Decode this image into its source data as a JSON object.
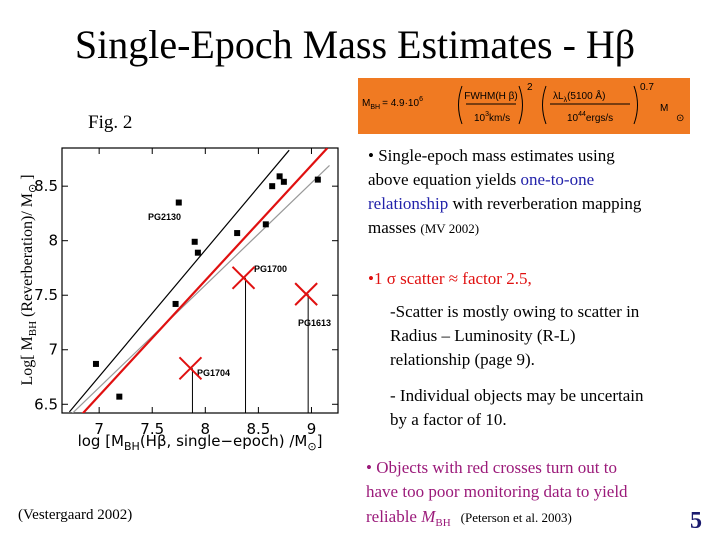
{
  "title": "Single-Epoch Mass Estimates - Hβ",
  "equation": {
    "m": "M",
    "bh": "BH",
    "coef": "= 4.9·10",
    "coef_exp": "6",
    "num1": "FWHM(H β)",
    "exp1": "2",
    "den1_base": "10",
    "den1_exp": "3",
    "den1_unit": "km/s",
    "num2_base": "λL",
    "num2_sub": "λ",
    "num2_rest": "(5100 Å)",
    "exp2": "0.7",
    "den2_base": "10",
    "den2_exp": "44",
    "den2_unit": "ergs/s",
    "m_sun": "M",
    "sun": "⊙"
  },
  "figure_label": "Fig. 2",
  "chart_data": {
    "type": "scatter",
    "x_label": [
      "log [M",
      "BH",
      "(Hβ,  single−epoch)  /M",
      "⊙",
      "]"
    ],
    "y_label": [
      "Log[ M",
      "BH",
      " (Reverberation)/ M",
      "⊙",
      " ]"
    ],
    "xlim": [
      6.65,
      9.25
    ],
    "ylim": [
      6.42,
      8.85
    ],
    "xticks": [
      7,
      7.5,
      8,
      8.5,
      9
    ],
    "yticks": [
      6.5,
      7,
      7.5,
      8,
      8.5
    ],
    "series": [
      {
        "marker": "square",
        "color": "#000000",
        "x": [
          6.97,
          7.19,
          7.72,
          7.75,
          7.9,
          7.93,
          8.3,
          8.57,
          8.63,
          8.7,
          8.74,
          9.06
        ],
        "values": [
          6.87,
          6.57,
          7.42,
          8.35,
          7.99,
          7.89,
          8.07,
          8.15,
          8.5,
          8.59,
          8.54,
          8.56
        ]
      },
      {
        "marker": "cross",
        "color": "#e01010",
        "x": [
          8.36,
          8.95,
          7.86
        ],
        "values": [
          7.66,
          7.51,
          6.83
        ]
      }
    ],
    "lines": [
      {
        "color": "#000000",
        "x": [
          6.72,
          8.79
        ],
        "values": [
          6.43,
          8.83
        ]
      },
      {
        "color": "#999999",
        "x": [
          6.74,
          9.17
        ],
        "values": [
          6.41,
          8.69
        ]
      },
      {
        "color": "#e01010",
        "x": [
          6.83,
          9.15
        ],
        "values": [
          6.4,
          8.85
        ]
      }
    ],
    "annotations": [
      "PG2130",
      "PG1700",
      "PG1613",
      "PG1704"
    ]
  },
  "notes": {
    "b1": [
      "• Single-epoch mass estimates using",
      "above equation yields ",
      "one-to-one",
      "relationship",
      " with reverberation mapping",
      "masses ",
      "(MV 2002)"
    ],
    "b2": "•1 σ scatter ≈ factor 2.5,",
    "b2a": [
      "-Scatter is mostly owing to scatter in",
      "Radius – Luminosity  (R-L)",
      "relationship (page 9)."
    ],
    "b2b": [
      "- Individual objects may be uncertain",
      "by a factor of 10."
    ],
    "b3": [
      "• Objects with red crosses turn out to",
      "have too poor monitoring data to yield",
      "reliable ",
      "M",
      "BH",
      "(Peterson et al. 2003)"
    ]
  },
  "citation": "(Vestergaard 2002)",
  "page_number": "5"
}
